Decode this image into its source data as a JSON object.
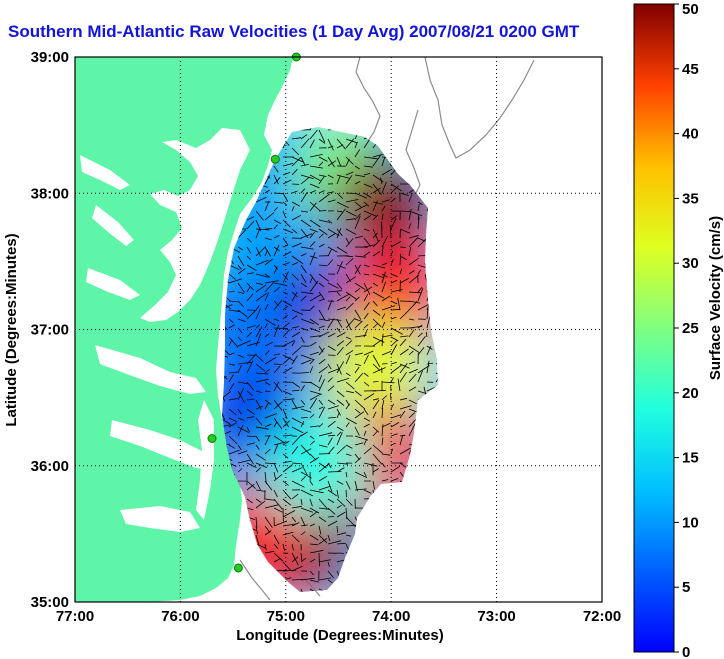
{
  "title": "Southern Mid-Atlantic Raw Velocities (1 Day Avg) 2007/08/21 0200 GMT",
  "map": {
    "x_axis": {
      "label": "Longitude (Degrees:Minutes)",
      "ticks": [
        "77:00",
        "76:00",
        "75:00",
        "74:00",
        "73:00",
        "72:00"
      ],
      "range_deg_west": [
        77,
        72
      ]
    },
    "y_axis": {
      "label": "Latitude (Degrees:Minutes)",
      "ticks": [
        "39:00",
        "38:00",
        "37:00",
        "36:00",
        "35:00"
      ],
      "range_deg_north": [
        35,
        39
      ]
    },
    "grid": "dotted",
    "land_color": "#5ef5a8",
    "water_color": "#ffffff",
    "station_color": "#22cc22",
    "stations": [
      {
        "lon": 74.9,
        "lat": 39.0
      },
      {
        "lon": 75.1,
        "lat": 38.25
      },
      {
        "lon": 75.7,
        "lat": 36.2
      },
      {
        "lon": 75.45,
        "lat": 35.25
      }
    ]
  },
  "colorbar": {
    "label": "Surface Velocity (cm/s)",
    "min": 0,
    "max": 50,
    "ticks": [
      "0",
      "5",
      "10",
      "15",
      "20",
      "25",
      "30",
      "35",
      "40",
      "45",
      "50"
    ],
    "colormap": "jet"
  },
  "velocity_field": {
    "units": "cm/s",
    "speed_zones": [
      {
        "lon": 74.75,
        "lat": 37.1,
        "speed": 4
      },
      {
        "lon": 75.3,
        "lat": 36.35,
        "speed": 5
      },
      {
        "lon": 75.05,
        "lat": 37.9,
        "speed": 14
      },
      {
        "lon": 74.45,
        "lat": 38.15,
        "speed": 25
      },
      {
        "lon": 74.05,
        "lat": 37.9,
        "speed": 50
      },
      {
        "lon": 73.95,
        "lat": 37.3,
        "speed": 44
      },
      {
        "lon": 74.15,
        "lat": 36.7,
        "speed": 30
      },
      {
        "lon": 74.1,
        "lat": 36.05,
        "speed": 44
      },
      {
        "lon": 74.55,
        "lat": 35.85,
        "speed": 40
      },
      {
        "lon": 74.85,
        "lat": 35.4,
        "speed": 50
      },
      {
        "lon": 75.3,
        "lat": 35.45,
        "speed": 44
      },
      {
        "lon": 74.7,
        "lat": 36.0,
        "speed": 20
      },
      {
        "lon": 75.45,
        "lat": 37.0,
        "speed": 12
      }
    ]
  }
}
